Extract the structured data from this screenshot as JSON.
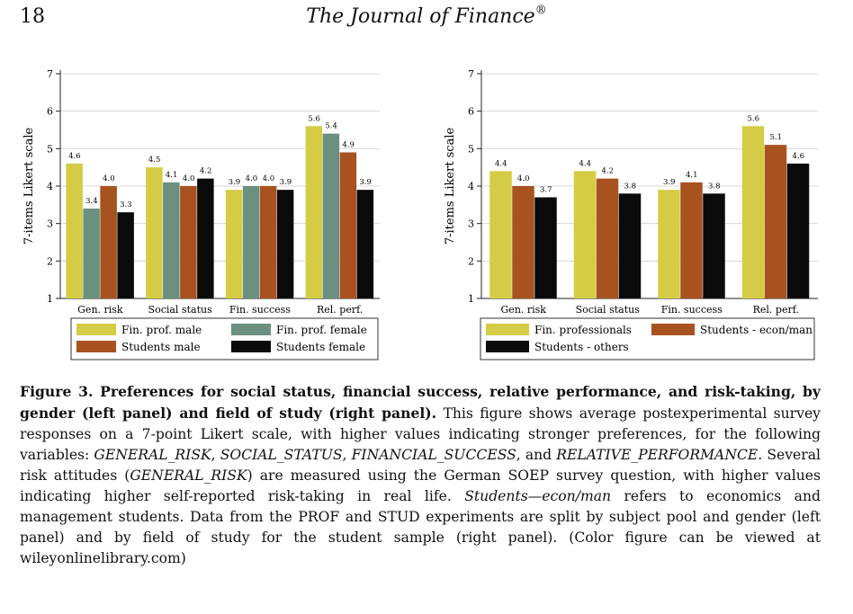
{
  "header": {
    "page_number": "18",
    "journal_title": "The Journal of Finance",
    "registered_mark": "®"
  },
  "chart_data": [
    {
      "type": "bar",
      "ylabel": "7-items Likert scale",
      "ylim": [
        1,
        7
      ],
      "yticks": [
        "1",
        "2",
        "3",
        "4",
        "5",
        "6",
        "7"
      ],
      "grid": true,
      "legend": "bottom",
      "categories": [
        "Gen. risk",
        "Social status",
        "Fin. success",
        "Rel. perf."
      ],
      "series": [
        {
          "name": "Fin. prof. male",
          "color": "#d4cc44",
          "values": [
            4.6,
            4.5,
            3.9,
            5.6
          ],
          "labels": [
            "4.6",
            "4.5",
            "3.9",
            "5.6"
          ]
        },
        {
          "name": "Fin. prof. female",
          "color": "#6b9080",
          "values": [
            3.4,
            4.1,
            4.0,
            5.4
          ],
          "labels": [
            "3.4",
            "4.1",
            "4.0",
            "5.4"
          ]
        },
        {
          "name": "Students male",
          "color": "#a8521f",
          "values": [
            4.0,
            4.0,
            4.0,
            4.9
          ],
          "labels": [
            "4.0",
            "4.0",
            "4.0",
            "4.9"
          ]
        },
        {
          "name": "Students female",
          "color": "#0a0a0a",
          "values": [
            3.3,
            4.2,
            3.9,
            3.9
          ],
          "labels": [
            "3.3",
            "4.2",
            "3.9",
            "3.9"
          ]
        }
      ]
    },
    {
      "type": "bar",
      "ylabel": "7-items Likert scale",
      "ylim": [
        1,
        7
      ],
      "yticks": [
        "1",
        "2",
        "3",
        "4",
        "5",
        "6",
        "7"
      ],
      "grid": true,
      "legend": "bottom",
      "categories": [
        "Gen. risk",
        "Social status",
        "Fin. success",
        "Rel. perf."
      ],
      "series": [
        {
          "name": "Fin. professionals",
          "color": "#d4cc44",
          "values": [
            4.4,
            4.4,
            3.9,
            5.6
          ],
          "labels": [
            "4.4",
            "4.4",
            "3.9",
            "5.6"
          ]
        },
        {
          "name": "Students - econ/man",
          "color": "#a8521f",
          "values": [
            4.0,
            4.2,
            4.1,
            5.1
          ],
          "labels": [
            "4.0",
            "4.2",
            "4.1",
            "5.1"
          ]
        },
        {
          "name": "Students - others",
          "color": "#0a0a0a",
          "values": [
            3.7,
            3.8,
            3.8,
            4.6
          ],
          "labels": [
            "3.7",
            "3.8",
            "3.8",
            "4.6"
          ]
        }
      ]
    }
  ],
  "caption": {
    "title": "Figure 3. Preferences for social status, financial success, relative performance, and risk-taking, by gender (left panel) and field of study (right panel).",
    "seg1": " This figure shows average postexperimental survey responses on a 7-point Likert scale, with higher values indicating stronger preferences, for the following variables: ",
    "var1": "GENERAL_RISK",
    "sep1": ", ",
    "var2": "SOCIAL_STATUS",
    "sep2": ", ",
    "var3": "FINANCIAL_SUCCESS",
    "sep3": ", and ",
    "var4": "RELATIVE_PERFORMANCE",
    "seg2": ". Several risk attitudes (",
    "var5": "GENERAL_RISK",
    "seg3": ") are measured using the German SOEP survey question, with higher values indicating higher self-reported risk-taking in real life. ",
    "var6": "Students—econ/man",
    "seg4": " refers to economics and management students. Data from the PROF and STUD experiments are split by subject pool and gender (left panel) and by field of study for the student sample (right panel). (Color figure can be viewed at wileyonlinelibrary.com)"
  }
}
